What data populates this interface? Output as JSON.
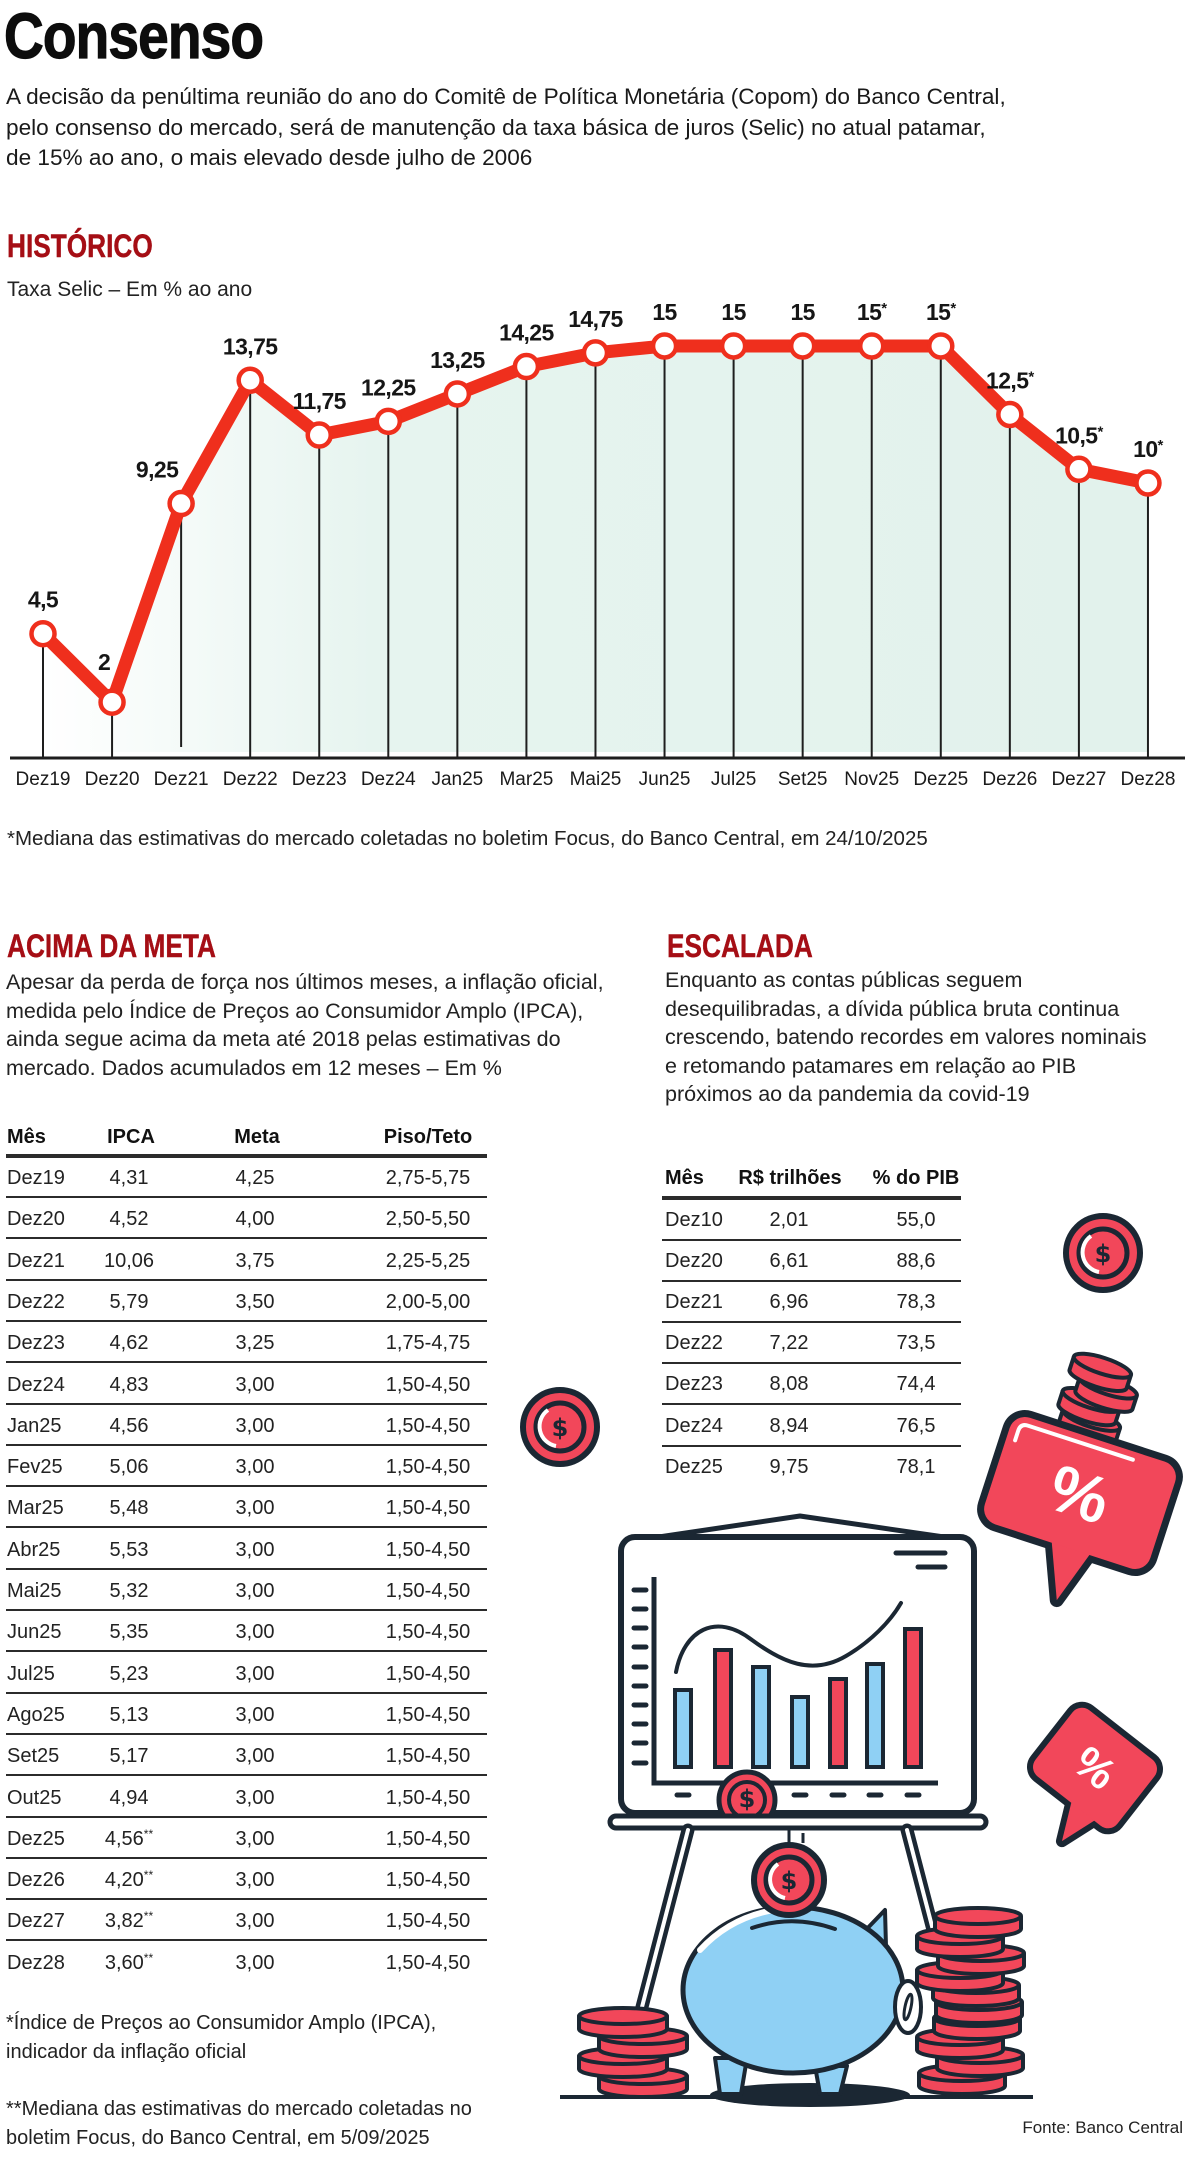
{
  "header": {
    "title": "Consenso",
    "lede_lines": [
      "A decisão da penúltima reunião do ano do Comitê de Política Monetária (Copom) do Banco Central,",
      "pelo consenso do mercado, será de manutenção da taxa básica de juros (Selic) no atual patamar,",
      "de 15% ao ano, o mais elevado desde julho de 2006"
    ]
  },
  "historico": {
    "heading": "HISTÓRICO",
    "subtitle": "Taxa Selic – Em % ao ano",
    "footnote": "*Mediana das estimativas do mercado coletadas no boletim Focus, do Banco Central, em 24/10/2025"
  },
  "chart_data": {
    "type": "line",
    "title": "HISTÓRICO",
    "subtitle": "Taxa Selic – Em % ao ano",
    "xlabel": "",
    "ylabel": "% ao ano",
    "categories": [
      "Dez19",
      "Dez20",
      "Dez21",
      "Dez22",
      "Dez23",
      "Dez24",
      "Jan25",
      "Mar25",
      "Mai25",
      "Jun25",
      "Jul25",
      "Set25",
      "Nov25",
      "Dez25",
      "Dez26",
      "Dez27",
      "Dez28"
    ],
    "series": [
      {
        "name": "Taxa Selic",
        "values": [
          4.5,
          2,
          9.25,
          13.75,
          11.75,
          12.25,
          13.25,
          14.25,
          14.75,
          15,
          15,
          15,
          15,
          15,
          12.5,
          10.5,
          10
        ]
      }
    ],
    "values": [
      4.5,
      2,
      9.25,
      13.75,
      11.75,
      12.25,
      13.25,
      14.25,
      14.75,
      15,
      15,
      15,
      15,
      15,
      12.5,
      10.5,
      10
    ],
    "value_labels": [
      "4,5",
      "2",
      "9,25",
      "13,75",
      "11,75",
      "12,25",
      "13,25",
      "14,25",
      "14,75",
      "15",
      "15",
      "15",
      "15",
      "15",
      "12,5",
      "10,5",
      "10"
    ],
    "estimated": [
      false,
      false,
      false,
      false,
      false,
      false,
      false,
      false,
      false,
      false,
      false,
      false,
      true,
      true,
      true,
      true,
      true
    ],
    "estimate_marker": "*",
    "ylim": [
      0,
      15
    ],
    "grid": false,
    "drop_lines": true,
    "legend": null,
    "annotations": [
      "*Mediana das estimativas do mercado coletadas no boletim Focus, do Banco Central, em 24/10/2025"
    ]
  },
  "acima_da_meta": {
    "heading": "ACIMA DA META",
    "paragraph_lines": [
      "Apesar da perda de força nos últimos meses, a inflação oficial,",
      "medida pelo Índice de Preços ao Consumidor Amplo (IPCA),",
      "ainda segue acima da meta até 2018 pelas estimativas do",
      "mercado. Dados acumulados em 12 meses – Em %"
    ],
    "table": {
      "columns": [
        "Mês",
        "IPCA",
        "Meta",
        "Piso/Teto"
      ],
      "rows": [
        {
          "mes": "Dez19",
          "ipca": "4,31",
          "ipca_mark": "",
          "meta": "4,25",
          "piso_teto": "2,75-5,75"
        },
        {
          "mes": "Dez20",
          "ipca": "4,52",
          "ipca_mark": "",
          "meta": "4,00",
          "piso_teto": "2,50-5,50"
        },
        {
          "mes": "Dez21",
          "ipca": "10,06",
          "ipca_mark": "",
          "meta": "3,75",
          "piso_teto": "2,25-5,25"
        },
        {
          "mes": "Dez22",
          "ipca": "5,79",
          "ipca_mark": "",
          "meta": "3,50",
          "piso_teto": "2,00-5,00"
        },
        {
          "mes": "Dez23",
          "ipca": "4,62",
          "ipca_mark": "",
          "meta": "3,25",
          "piso_teto": "1,75-4,75"
        },
        {
          "mes": "Dez24",
          "ipca": "4,83",
          "ipca_mark": "",
          "meta": "3,00",
          "piso_teto": "1,50-4,50"
        },
        {
          "mes": "Jan25",
          "ipca": "4,56",
          "ipca_mark": "",
          "meta": "3,00",
          "piso_teto": "1,50-4,50"
        },
        {
          "mes": "Fev25",
          "ipca": "5,06",
          "ipca_mark": "",
          "meta": "3,00",
          "piso_teto": "1,50-4,50"
        },
        {
          "mes": "Mar25",
          "ipca": "5,48",
          "ipca_mark": "",
          "meta": "3,00",
          "piso_teto": "1,50-4,50"
        },
        {
          "mes": "Abr25",
          "ipca": "5,53",
          "ipca_mark": "",
          "meta": "3,00",
          "piso_teto": "1,50-4,50"
        },
        {
          "mes": "Mai25",
          "ipca": "5,32",
          "ipca_mark": "",
          "meta": "3,00",
          "piso_teto": "1,50-4,50"
        },
        {
          "mes": "Jun25",
          "ipca": "5,35",
          "ipca_mark": "",
          "meta": "3,00",
          "piso_teto": "1,50-4,50"
        },
        {
          "mes": "Jul25",
          "ipca": "5,23",
          "ipca_mark": "",
          "meta": "3,00",
          "piso_teto": "1,50-4,50"
        },
        {
          "mes": "Ago25",
          "ipca": "5,13",
          "ipca_mark": "",
          "meta": "3,00",
          "piso_teto": "1,50-4,50"
        },
        {
          "mes": "Set25",
          "ipca": "5,17",
          "ipca_mark": "",
          "meta": "3,00",
          "piso_teto": "1,50-4,50"
        },
        {
          "mes": "Out25",
          "ipca": "4,94",
          "ipca_mark": "",
          "meta": "3,00",
          "piso_teto": "1,50-4,50"
        },
        {
          "mes": "Dez25",
          "ipca": "4,56",
          "ipca_mark": "**",
          "meta": "3,00",
          "piso_teto": "1,50-4,50"
        },
        {
          "mes": "Dez26",
          "ipca": "4,20",
          "ipca_mark": "**",
          "meta": "3,00",
          "piso_teto": "1,50-4,50"
        },
        {
          "mes": "Dez27",
          "ipca": "3,82",
          "ipca_mark": "**",
          "meta": "3,00",
          "piso_teto": "1,50-4,50"
        },
        {
          "mes": "Dez28",
          "ipca": "3,60",
          "ipca_mark": "**",
          "meta": "3,00",
          "piso_teto": "1,50-4,50"
        }
      ]
    },
    "footnotes": [
      [
        "*Índice de Preços ao Consumidor Amplo (IPCA),",
        "indicador da inflação oficial"
      ],
      [
        "**Mediana das estimativas do mercado coletadas no",
        "boletim Focus, do Banco Central, em 5/09/2025"
      ]
    ]
  },
  "escalada": {
    "heading": "ESCALADA",
    "paragraph_lines": [
      "Enquanto as contas públicas seguem",
      "desequilibradas, a dívida pública bruta continua",
      "crescendo, batendo recordes em valores nominais",
      "e retomando patamares em relação ao PIB",
      "próximos ao da pandemia da covid-19"
    ],
    "table": {
      "columns": [
        "Mês",
        "R$ trilhões",
        "% do PIB"
      ],
      "rows": [
        {
          "mes": "Dez10",
          "rs_trilhoes": "2,01",
          "pct_pib": "55,0"
        },
        {
          "mes": "Dez20",
          "rs_trilhoes": "6,61",
          "pct_pib": "88,6"
        },
        {
          "mes": "Dez21",
          "rs_trilhoes": "6,96",
          "pct_pib": "78,3"
        },
        {
          "mes": "Dez22",
          "rs_trilhoes": "7,22",
          "pct_pib": "73,5"
        },
        {
          "mes": "Dez23",
          "rs_trilhoes": "8,08",
          "pct_pib": "74,4"
        },
        {
          "mes": "Dez24",
          "rs_trilhoes": "8,94",
          "pct_pib": "76,5"
        },
        {
          "mes": "Dez25",
          "rs_trilhoes": "9,75",
          "pct_pib": "78,1"
        }
      ]
    }
  },
  "illustration": {
    "coin_symbol": "$",
    "bubble_symbol": "%",
    "icons": [
      "dollar-coin-icon",
      "percent-speech-bubble-icon",
      "chart-board-icon",
      "piggy-bank-icon",
      "coin-stack-icon"
    ]
  },
  "source": "Fonte: Banco Central",
  "colors": {
    "heading": "#a50e15",
    "line": "#ef2f1d",
    "area_fill": "#e3f3ed",
    "illustration_red": "#f2475a",
    "illustration_blue": "#8fd0f4",
    "outline": "#1b2733"
  }
}
